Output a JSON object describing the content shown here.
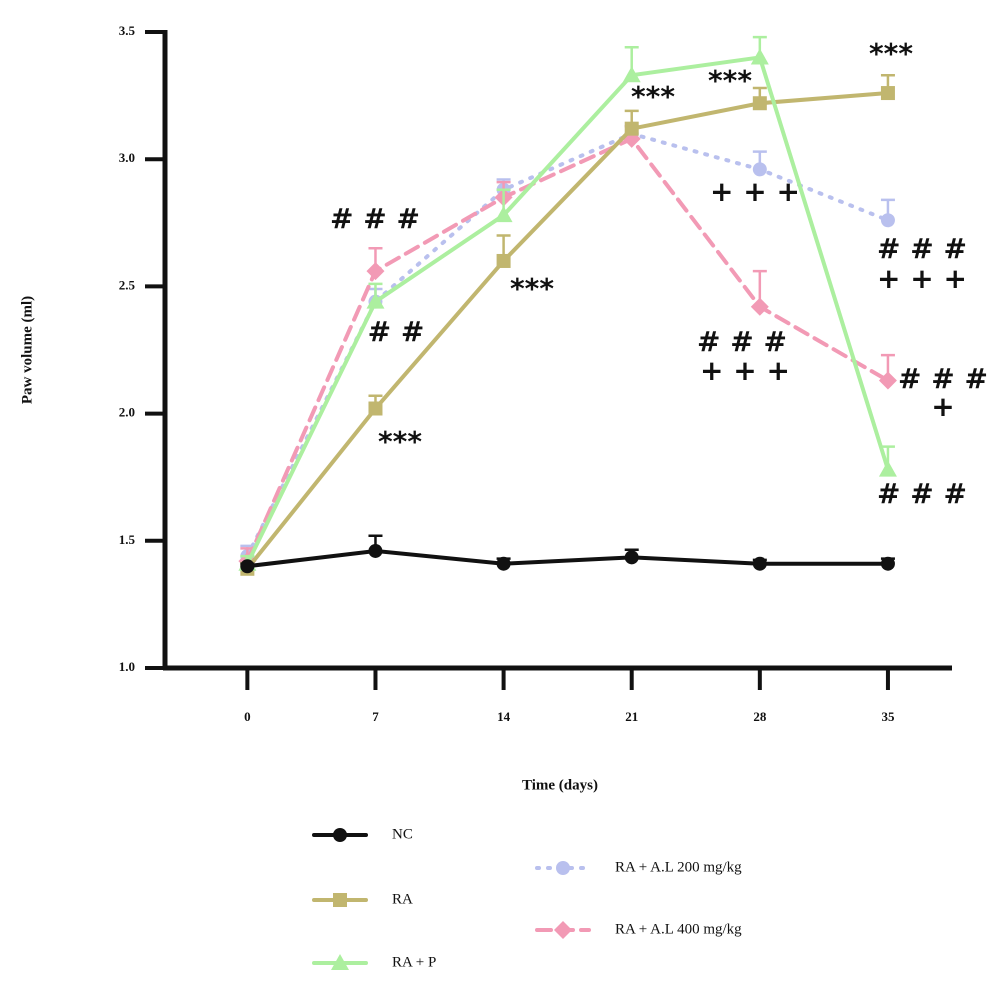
{
  "chart_data": {
    "type": "line",
    "x_label": "Time (days)",
    "y_label": "Paw volume (ml)",
    "x": [
      0,
      7,
      14,
      21,
      28,
      35
    ],
    "xlim": [
      -4.5,
      38.5
    ],
    "xticks": [
      0,
      7,
      14,
      21,
      28,
      35
    ],
    "ylim": [
      1,
      3.5
    ],
    "yticks": [
      {
        "value": 1,
        "label": "1.0"
      },
      1.5,
      {
        "value": 2,
        "label": "2.0"
      },
      2.5,
      {
        "value": 3,
        "label": "3.0"
      },
      3.5
    ],
    "grid": false,
    "series": [
      {
        "name": "NC",
        "color": "#111111",
        "marker": "circle",
        "line_style": "solid",
        "values": [
          1.4,
          1.46,
          1.41,
          1.435,
          1.41,
          1.41
        ],
        "errors": [
          0.01,
          0.06,
          0.02,
          0.03,
          0.015,
          0.02
        ]
      },
      {
        "name": "RA",
        "color": "#c1b66f",
        "marker": "square",
        "line_style": "solid",
        "values": [
          1.39,
          2.02,
          2.6,
          3.12,
          3.22,
          3.26
        ],
        "errors": [
          0.01,
          0.05,
          0.1,
          0.07,
          0.06,
          0.07
        ]
      },
      {
        "name": "RA + P",
        "color": "#acef9f",
        "marker": "triangle",
        "line_style": "solid",
        "values": [
          1.41,
          2.44,
          2.78,
          3.33,
          3.4,
          1.78
        ],
        "errors": [
          0.03,
          0.07,
          0.1,
          0.11,
          0.08,
          0.09
        ]
      },
      {
        "name": "RA + A.L 200 mg/kg",
        "color": "#b9c0ee",
        "marker": "circle",
        "line_style": "dotted",
        "values": [
          1.44,
          2.44,
          2.88,
          3.1,
          2.96,
          2.76
        ],
        "errors": [
          0.04,
          0.05,
          0.04,
          0.03,
          0.07,
          0.08
        ]
      },
      {
        "name": "RA + A.L 400 mg/kg",
        "color": "#f29ab5",
        "marker": "diamond",
        "line_style": "dashed",
        "values": [
          1.42,
          2.56,
          2.85,
          3.08,
          2.42,
          2.13
        ],
        "errors": [
          0.05,
          0.09,
          0.06,
          0.05,
          0.14,
          0.1
        ]
      }
    ],
    "annotations": [
      "# # #",
      "# #",
      "***",
      "***",
      "***",
      "***",
      "***",
      "+ + +",
      "# # #",
      "+ + +",
      "# # #",
      "+ + +",
      "# # #",
      "+",
      "# # #"
    ]
  }
}
